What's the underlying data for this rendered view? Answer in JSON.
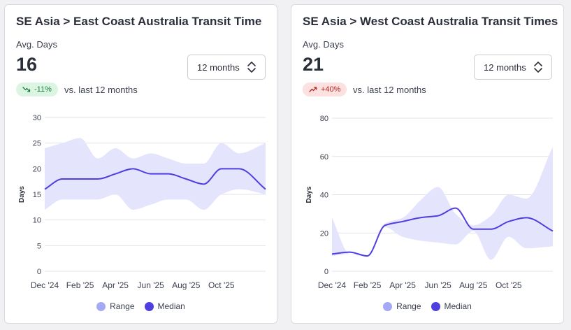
{
  "colors": {
    "range_fill": "#e4e5fd",
    "range_legend": "#a5a8f5",
    "median": "#4f3ee0",
    "grid": "#e1e3e8",
    "axis_text": "#3d4250"
  },
  "cards": [
    {
      "title": "SE Asia > East Coast Australia Transit Time",
      "metric_label": "Avg. Days",
      "metric_value": "16",
      "period_selector": "12 months",
      "change": {
        "value": "-11%",
        "direction": "down",
        "icon": "trend-down-icon",
        "tone": "good"
      },
      "change_note": "vs. last 12 months",
      "legend": [
        {
          "label": "Range",
          "icon": "range-dot-icon"
        },
        {
          "label": "Median",
          "icon": "median-dot-icon"
        }
      ]
    },
    {
      "title": "SE Asia > West Coast Australia Transit Times",
      "metric_label": "Avg. Days",
      "metric_value": "21",
      "period_selector": "12 months",
      "change": {
        "value": "+40%",
        "direction": "up",
        "icon": "trend-up-icon",
        "tone": "bad"
      },
      "change_note": "vs. last 12 months",
      "legend": [
        {
          "label": "Range",
          "icon": "range-dot-icon"
        },
        {
          "label": "Median",
          "icon": "median-dot-icon"
        }
      ]
    }
  ],
  "chart_data": [
    {
      "type": "area",
      "title": "",
      "xlabel": "",
      "ylabel": "Days",
      "ylim": [
        0,
        30
      ],
      "yticks": [
        0,
        5,
        10,
        15,
        20,
        25,
        30
      ],
      "xlim": [
        0,
        12.5
      ],
      "xtick_labels": [
        {
          "x": 0,
          "label": "Dec '24"
        },
        {
          "x": 2,
          "label": "Feb '25"
        },
        {
          "x": 4,
          "label": "Apr '25"
        },
        {
          "x": 6,
          "label": "Jun '25"
        },
        {
          "x": 8,
          "label": "Aug '25"
        },
        {
          "x": 10,
          "label": "Oct '25"
        }
      ],
      "grid": "horizontal",
      "legend_position": "bottom",
      "series": [
        {
          "name": "Range",
          "kind": "band",
          "x": [
            0,
            1,
            2,
            3,
            4,
            5,
            6,
            7,
            8,
            9,
            10,
            11,
            12.5
          ],
          "low": [
            12,
            14,
            14,
            14,
            15,
            12,
            13,
            14,
            14,
            12,
            15,
            16,
            15
          ],
          "high": [
            24,
            25,
            26,
            22,
            24,
            22,
            23,
            22,
            21,
            21,
            25,
            23,
            25
          ]
        },
        {
          "name": "Median",
          "kind": "line",
          "x": [
            0,
            1,
            2,
            3,
            4,
            5,
            6,
            7,
            8,
            9,
            10,
            11,
            12.5
          ],
          "values": [
            16,
            18,
            18,
            18,
            19,
            20,
            19,
            19,
            18,
            17,
            20,
            20,
            16
          ]
        }
      ]
    },
    {
      "type": "area",
      "title": "",
      "xlabel": "",
      "ylabel": "Days",
      "ylim": [
        0,
        80
      ],
      "yticks": [
        0,
        20,
        40,
        60,
        80
      ],
      "xlim": [
        0,
        12.5
      ],
      "xtick_labels": [
        {
          "x": 0,
          "label": "Dec '24"
        },
        {
          "x": 2,
          "label": "Feb '25"
        },
        {
          "x": 4,
          "label": "Apr '25"
        },
        {
          "x": 6,
          "label": "Jun '25"
        },
        {
          "x": 8,
          "label": "Aug '25"
        },
        {
          "x": 10,
          "label": "Oct '25"
        }
      ],
      "grid": "horizontal",
      "legend_position": "bottom",
      "series": [
        {
          "name": "Range",
          "kind": "band",
          "x": [
            0,
            1,
            2,
            3,
            4,
            5,
            6,
            7,
            8,
            9,
            10,
            11,
            12.5
          ],
          "low": [
            8,
            9,
            8,
            23,
            18,
            16,
            15,
            14,
            21,
            6,
            18,
            12,
            13
          ],
          "high": [
            28,
            9,
            8,
            25,
            28,
            37,
            44,
            30,
            24,
            29,
            40,
            38,
            65
          ]
        },
        {
          "name": "Median",
          "kind": "line",
          "x": [
            0,
            1,
            2,
            3,
            4,
            5,
            6,
            7,
            8,
            9,
            10,
            11,
            12.5
          ],
          "values": [
            9,
            10,
            8,
            24,
            26,
            28,
            29,
            33,
            22,
            22,
            26,
            28,
            21
          ]
        }
      ]
    }
  ]
}
